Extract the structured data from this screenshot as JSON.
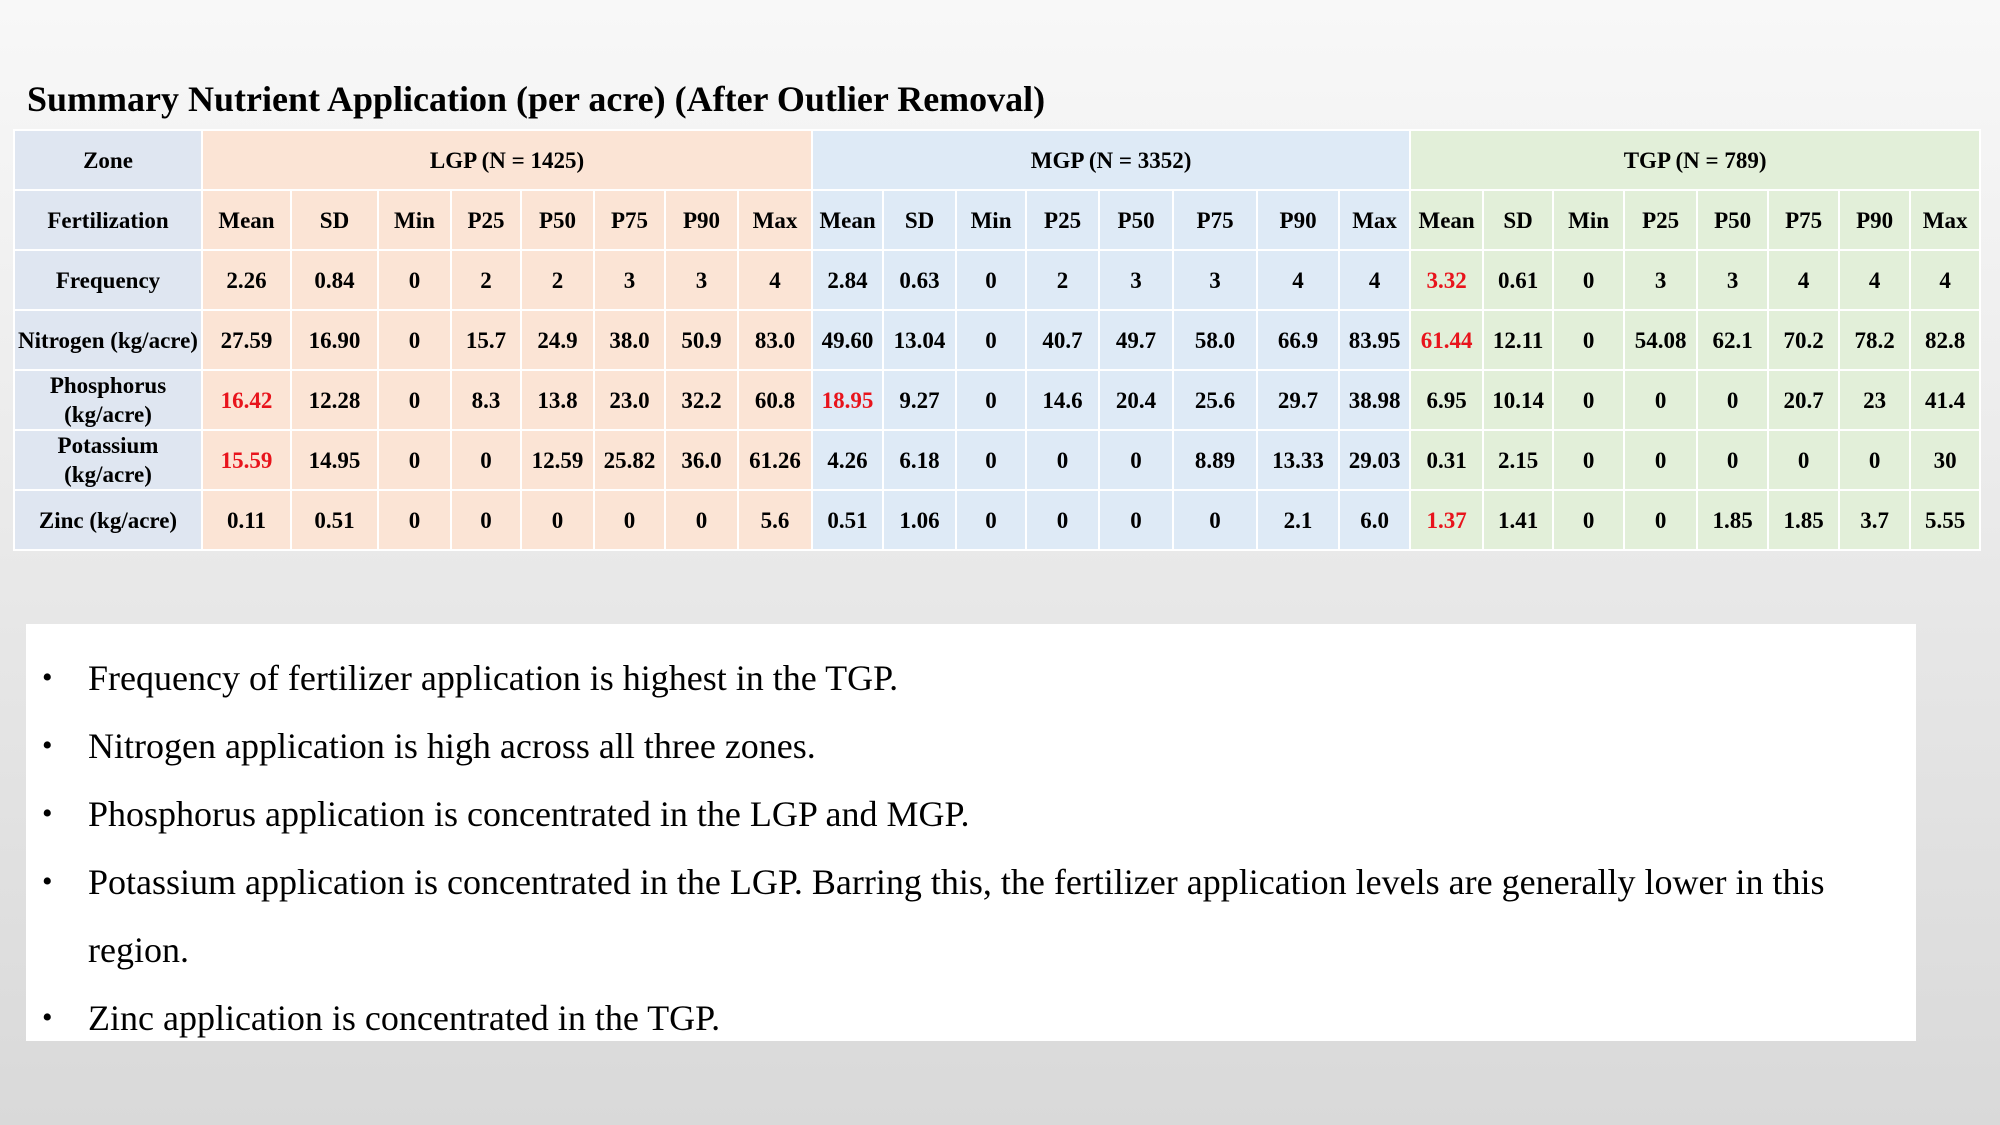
{
  "title": "Summary Nutrient Application (per acre) (After Outlier Removal)",
  "table": {
    "header": [
      "Zone",
      "LGP (N = 1425)",
      "MGP (N = 3352)",
      "TGP (N = 789)"
    ],
    "subheader": [
      "Fertilization",
      "Mean",
      "SD",
      "Min",
      "P25",
      "P50",
      "P75",
      "P90",
      "Max",
      "Mean",
      "SD",
      "Min",
      "P25",
      "P50",
      "P75",
      "P90",
      "Max",
      "Mean",
      "SD",
      "Min",
      "P25",
      "P50",
      "P75",
      "P90",
      "Max"
    ],
    "rows": [
      {
        "label": "Frequency",
        "cells": [
          "2.26",
          "0.84",
          "0",
          "2",
          "2",
          "3",
          "3",
          "4",
          "2.84",
          "0.63",
          "0",
          "2",
          "3",
          "3",
          "4",
          "4",
          {
            "text": "3.32",
            "color": "#e8141c"
          },
          "0.61",
          "0",
          "3",
          "3",
          "4",
          "4",
          "4"
        ]
      },
      {
        "label": "Nitrogen (kg/acre)",
        "cells": [
          "27.59",
          "16.90",
          "0",
          "15.7",
          "24.9",
          "38.0",
          "50.9",
          "83.0",
          "49.60",
          "13.04",
          "0",
          "40.7",
          "49.7",
          "58.0",
          "66.9",
          "83.95",
          {
            "text": "61.44",
            "color": "#e8141c"
          },
          "12.11",
          "0",
          "54.08",
          "62.1",
          "70.2",
          "78.2",
          "82.8"
        ]
      },
      {
        "label": "Phosphorus (kg/acre)",
        "cells": [
          {
            "text": "16.42",
            "color": "#e8141c"
          },
          "12.28",
          "0",
          "8.3",
          "13.8",
          "23.0",
          "32.2",
          "60.8",
          {
            "text": "18.95",
            "color": "#e8141c"
          },
          "9.27",
          "0",
          "14.6",
          "20.4",
          "25.6",
          "29.7",
          "38.98",
          "6.95",
          "10.14",
          "0",
          "0",
          "0",
          "20.7",
          "23",
          "41.4"
        ]
      },
      {
        "label": "Potassium (kg/acre)",
        "cells": [
          {
            "text": "15.59",
            "color": "#e8141c"
          },
          "14.95",
          "0",
          "0",
          "12.59",
          "25.82",
          "36.0",
          "61.26",
          "4.26",
          "6.18",
          "0",
          "0",
          "0",
          "8.89",
          "13.33",
          "29.03",
          "0.31",
          "2.15",
          "0",
          "0",
          "0",
          "0",
          "0",
          "30"
        ]
      },
      {
        "label": "Zinc (kg/acre)",
        "cells": [
          "0.11",
          "0.51",
          "0",
          "0",
          "0",
          "0",
          "0",
          "5.6",
          "0.51",
          "1.06",
          "0",
          "0",
          "0",
          "0",
          "2.1",
          "6.0",
          {
            "text": "1.37",
            "color": "#e8141c"
          },
          "1.41",
          "0",
          "0",
          "1.85",
          "1.85",
          "3.7",
          "5.55"
        ]
      }
    ]
  },
  "bullets": [
    "Frequency of fertilizer application is highest in the TGP.",
    "Nitrogen application is high across all three zones.",
    "Phosphorus application is concentrated in the LGP and MGP.",
    "Potassium application is concentrated in the LGP. Barring this, the fertilizer application levels are generally lower in this region.",
    "Zinc application is concentrated in the TGP."
  ]
}
